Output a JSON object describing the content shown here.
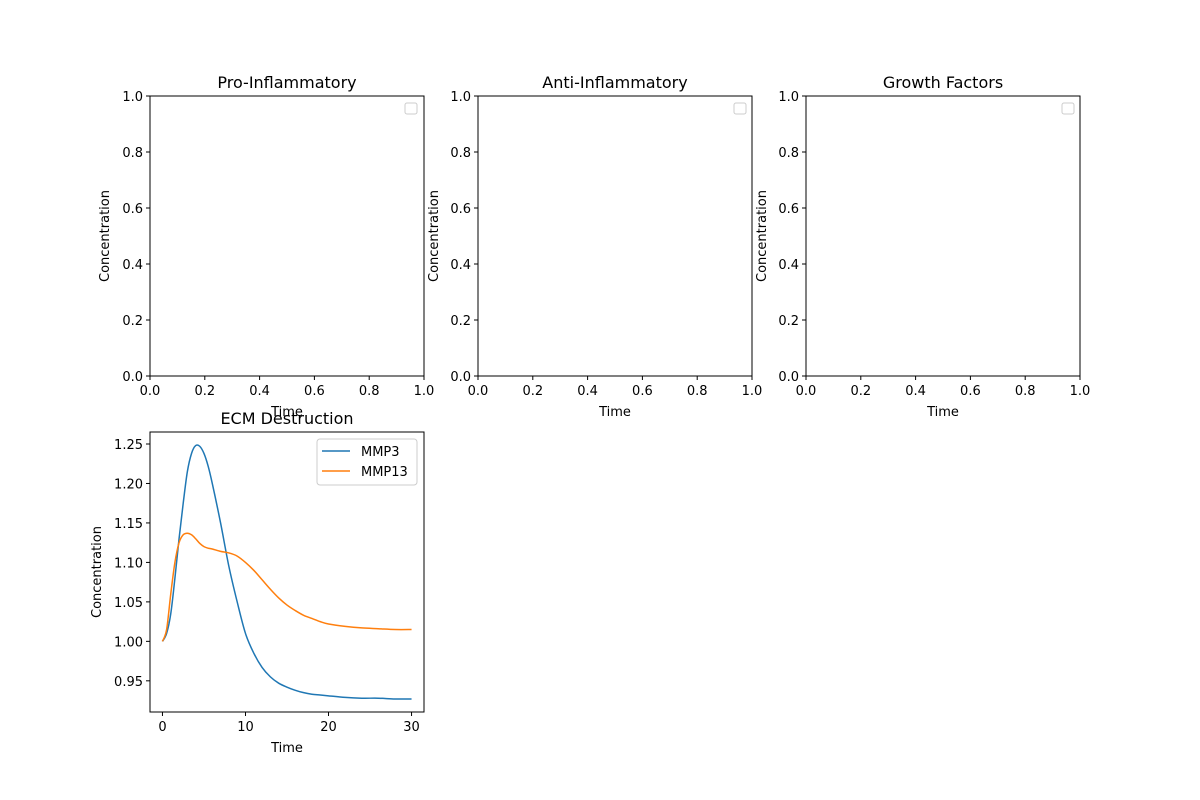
{
  "chart_data": [
    {
      "type": "line",
      "title": "Pro-Inflammatory",
      "xlabel": "Time",
      "ylabel": "Concentration",
      "xlim": [
        0,
        1
      ],
      "ylim": [
        0,
        1
      ],
      "xticks": [
        "0.0",
        "0.2",
        "0.4",
        "0.6",
        "0.8",
        "1.0"
      ],
      "yticks": [
        "0.0",
        "0.2",
        "0.4",
        "0.6",
        "0.8",
        "1.0"
      ],
      "grid": false,
      "legend": "upper right (empty)",
      "series": []
    },
    {
      "type": "line",
      "title": "Anti-Inflammatory",
      "xlabel": "Time",
      "ylabel": "Concentration",
      "xlim": [
        0,
        1
      ],
      "ylim": [
        0,
        1
      ],
      "xticks": [
        "0.0",
        "0.2",
        "0.4",
        "0.6",
        "0.8",
        "1.0"
      ],
      "yticks": [
        "0.0",
        "0.2",
        "0.4",
        "0.6",
        "0.8",
        "1.0"
      ],
      "grid": false,
      "legend": "upper right (empty)",
      "series": []
    },
    {
      "type": "line",
      "title": "Growth Factors",
      "xlabel": "Time",
      "ylabel": "Concentration",
      "xlim": [
        0,
        1
      ],
      "ylim": [
        0,
        1
      ],
      "xticks": [
        "0.0",
        "0.2",
        "0.4",
        "0.6",
        "0.8",
        "1.0"
      ],
      "yticks": [
        "0.0",
        "0.2",
        "0.4",
        "0.6",
        "0.8",
        "1.0"
      ],
      "grid": false,
      "legend": "upper right (empty)",
      "series": []
    },
    {
      "type": "line",
      "title": "ECM Destruction",
      "xlabel": "Time",
      "ylabel": "Concentration",
      "xlim": [
        -1.5,
        31.5
      ],
      "ylim": [
        0.9105,
        1.2652
      ],
      "xticks": [
        "0",
        "10",
        "20",
        "30"
      ],
      "xtick_values": [
        0,
        10,
        20,
        30
      ],
      "yticks": [
        "0.95",
        "1.00",
        "1.05",
        "1.10",
        "1.15",
        "1.20",
        "1.25"
      ],
      "ytick_values": [
        0.95,
        1.0,
        1.05,
        1.1,
        1.15,
        1.2,
        1.25
      ],
      "grid": false,
      "legend": "upper right",
      "series": [
        {
          "name": "MMP3",
          "color": "#1f77b4",
          "x": [
            0,
            0.5,
            1,
            1.5,
            2,
            2.5,
            3,
            3.5,
            4,
            4.5,
            5,
            5.5,
            6,
            7,
            8,
            9,
            10,
            11,
            12,
            13,
            14,
            15,
            16,
            17,
            18,
            19,
            20,
            22,
            24,
            26,
            28,
            30
          ],
          "y": [
            1.0,
            1.01,
            1.035,
            1.08,
            1.13,
            1.175,
            1.215,
            1.238,
            1.248,
            1.247,
            1.238,
            1.222,
            1.2,
            1.15,
            1.095,
            1.05,
            1.01,
            0.985,
            0.967,
            0.955,
            0.947,
            0.942,
            0.938,
            0.935,
            0.933,
            0.932,
            0.931,
            0.929,
            0.928,
            0.928,
            0.927,
            0.927
          ]
        },
        {
          "name": "MMP13",
          "color": "#ff7f0e",
          "x": [
            0,
            0.5,
            1,
            1.5,
            2,
            2.5,
            3,
            3.5,
            4,
            4.5,
            5,
            5.5,
            6,
            7,
            8,
            9,
            10,
            11,
            12,
            13,
            14,
            15,
            16,
            17,
            18,
            19,
            20,
            22,
            24,
            26,
            28,
            30
          ],
          "y": [
            1.0,
            1.015,
            1.06,
            1.1,
            1.125,
            1.135,
            1.137,
            1.135,
            1.13,
            1.124,
            1.12,
            1.118,
            1.117,
            1.114,
            1.112,
            1.108,
            1.1,
            1.09,
            1.078,
            1.066,
            1.055,
            1.046,
            1.039,
            1.033,
            1.029,
            1.025,
            1.022,
            1.019,
            1.017,
            1.016,
            1.015,
            1.015
          ]
        }
      ]
    }
  ]
}
